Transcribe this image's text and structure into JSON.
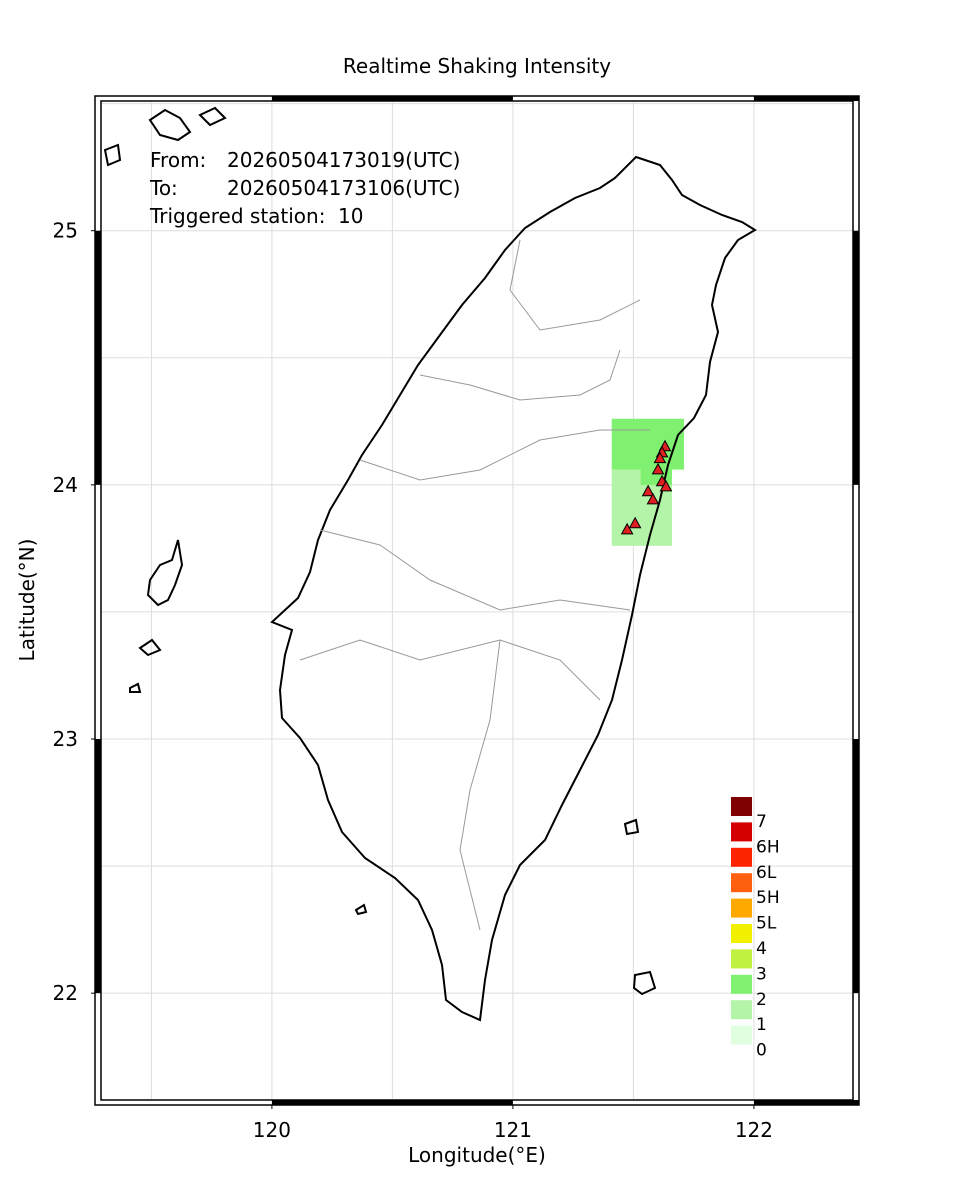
{
  "chart_data": {
    "type": "map",
    "title": "Realtime Shaking Intensity",
    "x_label": "Longitude(°E)",
    "y_label": "Latitude(°N)",
    "info": {
      "from_label": "From:",
      "from_value": "20260504173019(UTC)",
      "to_label": "To:",
      "to_value": "20260504173106(UTC)",
      "triggered_label": "Triggered station:",
      "triggered_count": 10
    },
    "xlim": [
      119.266,
      122.436
    ],
    "ylim": [
      21.56,
      25.53
    ],
    "xticks": [
      120,
      121,
      122
    ],
    "yticks": [
      22,
      23,
      24,
      25
    ],
    "xgrid": [
      119.5,
      120,
      120.5,
      121,
      121.5,
      122
    ],
    "ygrid": [
      22,
      22.5,
      23,
      23.5,
      24,
      24.5,
      25,
      25.5
    ],
    "legend": [
      {
        "label": "7",
        "color": "#7f0000"
      },
      {
        "label": "6H",
        "color": "#d40000"
      },
      {
        "label": "6L",
        "color": "#ff2400"
      },
      {
        "label": "5H",
        "color": "#ff6010"
      },
      {
        "label": "5L",
        "color": "#ffa800"
      },
      {
        "label": "4",
        "color": "#f0f000"
      },
      {
        "label": "3",
        "color": "#c0f040"
      },
      {
        "label": "2",
        "color": "#80f070"
      },
      {
        "label": "1",
        "color": "#b4f4a8"
      },
      {
        "label": "0",
        "color": "#e0ffe0"
      }
    ],
    "cells": [
      {
        "lon": [
          121.41,
          121.66
        ],
        "lat": [
          23.76,
          24.06
        ],
        "level": 1
      },
      {
        "lon": [
          121.41,
          121.71
        ],
        "lat": [
          24.06,
          24.26
        ],
        "level": 2
      },
      {
        "lon": [
          121.53,
          121.66
        ],
        "lat": [
          24.0,
          24.06
        ],
        "level": 2
      }
    ],
    "stations": {
      "color": "#e02020",
      "lon": [
        121.631,
        121.619,
        121.61,
        121.602,
        121.619,
        121.635,
        121.561,
        121.581,
        121.507,
        121.474
      ],
      "lat": [
        24.15,
        24.126,
        24.103,
        24.059,
        24.012,
        23.992,
        23.973,
        23.941,
        23.847,
        23.823
      ]
    }
  }
}
